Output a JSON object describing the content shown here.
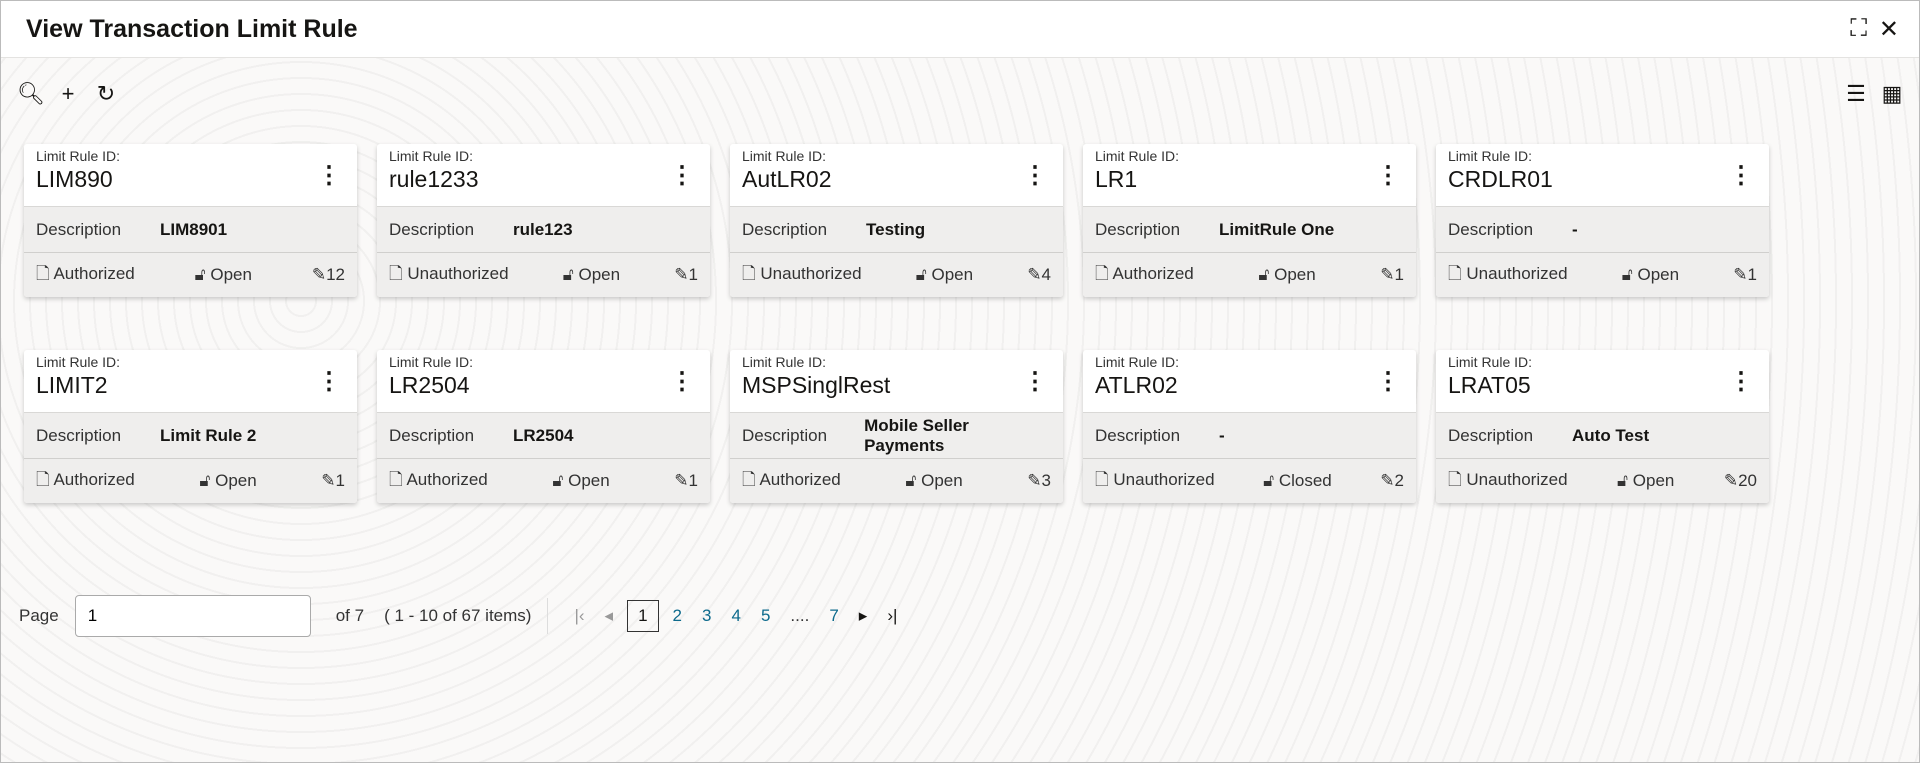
{
  "header": {
    "title": "View Transaction Limit Rule",
    "minimize_icon": "compress-icon",
    "close_icon": "close-icon"
  },
  "toolbar": {
    "search_icon": "search-icon",
    "add_icon": "plus-icon",
    "refresh_icon": "refresh-icon",
    "list_view_icon": "list-view-icon",
    "grid_view_icon": "grid-view-icon"
  },
  "card_labels": {
    "id_label": "Limit Rule ID:",
    "description_label": "Description"
  },
  "cards": [
    {
      "id": "LIM890",
      "description": "LIM8901",
      "auth": "Authorized",
      "status": "Open",
      "mods": "12"
    },
    {
      "id": "rule1233",
      "description": "rule123",
      "auth": "Unauthorized",
      "status": "Open",
      "mods": "1"
    },
    {
      "id": "AutLR02",
      "description": "Testing",
      "auth": "Unauthorized",
      "status": "Open",
      "mods": "4"
    },
    {
      "id": "LR1",
      "description": "LimitRule One",
      "auth": "Authorized",
      "status": "Open",
      "mods": "1"
    },
    {
      "id": "CRDLR01",
      "description": "-",
      "auth": "Unauthorized",
      "status": "Open",
      "mods": "1"
    },
    {
      "id": "LIMIT2",
      "description": "Limit Rule 2",
      "auth": "Authorized",
      "status": "Open",
      "mods": "1"
    },
    {
      "id": "LR2504",
      "description": "LR2504",
      "auth": "Authorized",
      "status": "Open",
      "mods": "1"
    },
    {
      "id": "MSPSinglRest",
      "description": "Mobile Seller Payments",
      "auth": "Authorized",
      "status": "Open",
      "mods": "3"
    },
    {
      "id": "ATLR02",
      "description": "-",
      "auth": "Unauthorized",
      "status": "Closed",
      "mods": "2"
    },
    {
      "id": "LRAT05",
      "description": "Auto Test",
      "auth": "Unauthorized",
      "status": "Open",
      "mods": "20"
    }
  ],
  "pagination": {
    "page_label": "Page",
    "page_value": "1",
    "of_pages": "of 7",
    "items_summary": "( 1 - 10 of 67 items)",
    "pages": [
      "1",
      "2",
      "3",
      "4",
      "5",
      "....",
      "7"
    ],
    "current": "1"
  }
}
